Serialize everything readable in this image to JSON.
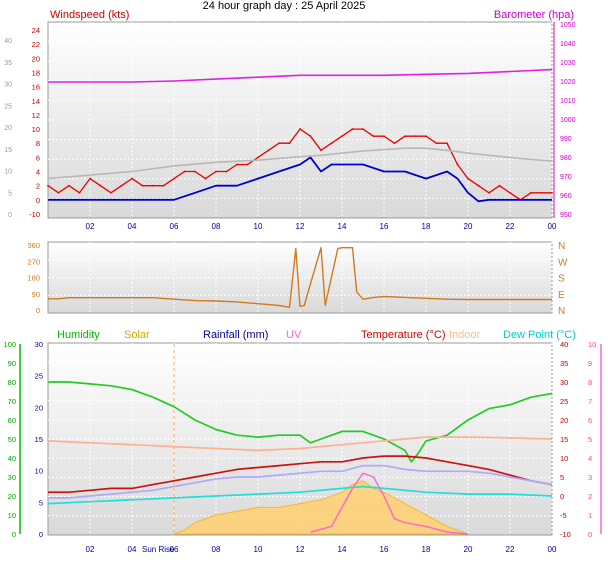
{
  "page_title": "24 hour graph day : 25 April 2025",
  "chart_data": [
    {
      "id": "wind_pressure",
      "type": "line",
      "legend": [
        {
          "label": "Windspeed (kts)",
          "color": "#cc0000"
        },
        {
          "label": "Barometer (hpa)",
          "color": "#cc00cc"
        }
      ],
      "x_tick_labels": [
        "02",
        "04",
        "06",
        "08",
        "10",
        "12",
        "14",
        "16",
        "18",
        "20",
        "22",
        "00"
      ],
      "y_left_kts_ticks": [
        "-10",
        "0",
        "2",
        "4",
        "6",
        "8",
        "10",
        "12",
        "14",
        "16",
        "18",
        "20",
        "22",
        "24"
      ],
      "y_left_mph_ticks": [
        "0",
        "5",
        "10",
        "15",
        "20",
        "25",
        "30",
        "35",
        "40"
      ],
      "y_right_hpa_ticks": [
        "950",
        "960",
        "970",
        "980",
        "990",
        "1000",
        "1010",
        "1020",
        "1030",
        "1040",
        "1050"
      ],
      "series": [
        {
          "key": "barometer",
          "color": "#e020e0",
          "axis": "hpa",
          "x": [
            0,
            2,
            4,
            6,
            8,
            10,
            12,
            14,
            16,
            18,
            20,
            22,
            24
          ],
          "values": [
            1019.5,
            1019.5,
            1019.5,
            1020,
            1021,
            1022,
            1023,
            1023,
            1023,
            1023.5,
            1024,
            1025,
            1026
          ]
        },
        {
          "key": "gust",
          "color": "#ee0000",
          "axis": "kts",
          "x": [
            0,
            0.5,
            1,
            1.5,
            2,
            2.5,
            3,
            3.5,
            4,
            4.5,
            5,
            5.5,
            6,
            6.5,
            7,
            7.5,
            8,
            8.5,
            9,
            9.5,
            10,
            10.5,
            11,
            11.5,
            12,
            12.5,
            13,
            13.5,
            14,
            14.5,
            15,
            15.5,
            16,
            16.5,
            17,
            17.5,
            18,
            18.5,
            19,
            19.5,
            20,
            20.5,
            21,
            21.5,
            22,
            22.5,
            23,
            23.5,
            24
          ],
          "values": [
            2,
            1,
            2,
            1,
            3,
            2,
            1,
            2,
            3,
            2,
            2,
            2,
            3,
            4,
            4,
            3,
            4,
            4,
            5,
            5,
            6,
            7,
            8,
            8,
            10,
            9,
            7,
            8,
            9,
            10,
            10,
            9,
            9,
            8,
            9,
            9,
            9,
            8,
            8,
            5,
            3,
            2,
            1,
            2,
            1,
            0,
            1,
            1,
            1
          ]
        },
        {
          "key": "average",
          "color": "#0000cc",
          "axis": "kts",
          "x": [
            0,
            1,
            2,
            3,
            4,
            5,
            6,
            7,
            8,
            9,
            10,
            11,
            12,
            12.5,
            13,
            13.5,
            14,
            15,
            16,
            17,
            18,
            19,
            19.5,
            20,
            20.5,
            21,
            22,
            23,
            24
          ],
          "values": [
            0,
            0,
            0,
            0,
            0,
            0,
            0,
            1,
            2,
            2,
            3,
            4,
            5,
            6,
            4,
            5,
            5,
            5,
            4,
            4,
            3,
            4,
            3,
            1,
            -1,
            0,
            0,
            0,
            0
          ]
        },
        {
          "key": "direction_scaled",
          "color": "#b8b8b8",
          "axis": "kts",
          "x": [
            0,
            2,
            4,
            6,
            8,
            10,
            12,
            13,
            14,
            15,
            16,
            17,
            18,
            19,
            20,
            21,
            22,
            23,
            24
          ],
          "values": [
            3,
            3.5,
            4,
            4.8,
            5.3,
            5.6,
            6.1,
            6.3,
            6.6,
            6.9,
            7.1,
            7.3,
            7.3,
            7.0,
            6.6,
            6.3,
            6.0,
            5.7,
            5.5
          ]
        }
      ]
    },
    {
      "id": "wind_direction",
      "type": "line",
      "y_left_ticks": [
        "360",
        "270",
        "180",
        "90",
        "0"
      ],
      "y_right_ticks": [
        "N",
        "W",
        "S",
        "E",
        "N"
      ],
      "series": [
        {
          "key": "direction",
          "color": "#d07a20",
          "x": [
            0,
            0.5,
            1,
            3,
            5,
            6,
            7,
            8,
            9,
            10,
            10.5,
            11,
            11.5,
            11.8,
            12,
            12.2,
            13,
            13.2,
            13.8,
            14,
            14.5,
            14.7,
            15,
            15.5,
            16,
            17,
            18,
            19,
            20,
            21,
            22,
            23,
            24
          ],
          "values": [
            62,
            62,
            68,
            68,
            68,
            60,
            52,
            50,
            45,
            35,
            30,
            25,
            15,
            340,
            20,
            25,
            345,
            25,
            340,
            345,
            345,
            100,
            60,
            70,
            75,
            70,
            65,
            60,
            58,
            58,
            58,
            58,
            58
          ]
        }
      ]
    },
    {
      "id": "temperature_humidity",
      "type": "line",
      "legend": [
        {
          "label": "Humidity",
          "color": "#00bb00"
        },
        {
          "label": "Solar",
          "color": "#ccaa00"
        },
        {
          "label": "Rainfall (mm)",
          "color": "#000099"
        },
        {
          "label": "UV",
          "color": "#ff66cc"
        },
        {
          "label": "Temperature (°C)",
          "color": "#cc0000"
        },
        {
          "label": "Indoor",
          "color": "#ffbb88"
        },
        {
          "label": "Dew Point (°C)",
          "color": "#00cccc"
        }
      ],
      "annotations": [
        "Sun Rise"
      ],
      "x_tick_labels": [
        "02",
        "04",
        "06",
        "08",
        "10",
        "12",
        "14",
        "16",
        "18",
        "20",
        "22",
        "00"
      ],
      "y_humidity_ticks": [
        "0",
        "10",
        "20",
        "30",
        "40",
        "50",
        "60",
        "70",
        "80",
        "90",
        "100"
      ],
      "y_rain_ticks": [
        "0",
        "5",
        "10",
        "15",
        "20",
        "25",
        "30"
      ],
      "y_temp_ticks": [
        "-10",
        "-5",
        "0",
        "5",
        "10",
        "15",
        "20",
        "25",
        "30",
        "35",
        "40"
      ],
      "y_uv_ticks": [
        "0",
        "1",
        "2",
        "3",
        "4",
        "5",
        "6",
        "7",
        "8",
        "9",
        "10"
      ],
      "series": [
        {
          "key": "humidity",
          "color": "#22cc22",
          "axis": "temp",
          "x": [
            0,
            1,
            2,
            3,
            4,
            5,
            6,
            7,
            8,
            9,
            10,
            11,
            12,
            12.5,
            13,
            14,
            15,
            16,
            17,
            17.3,
            17.6,
            18,
            19,
            20,
            21,
            22,
            23,
            24
          ],
          "values": [
            30,
            30,
            29.5,
            29,
            28,
            26,
            23.5,
            20,
            17.5,
            16,
            15.5,
            16,
            16,
            14,
            15,
            17,
            17,
            15,
            12,
            9,
            11,
            14.5,
            16,
            20,
            23,
            24,
            26,
            27
          ]
        },
        {
          "key": "indoor",
          "color": "#ffb090",
          "axis": "temp",
          "x": [
            0,
            2,
            4,
            6,
            8,
            10,
            12,
            14,
            16,
            18,
            20,
            22,
            24
          ],
          "values": [
            14.5,
            14,
            13.5,
            13,
            12.5,
            12,
            12.5,
            13.5,
            14.5,
            15.5,
            15.5,
            15.3,
            15
          ]
        },
        {
          "key": "temperature",
          "color": "#cc1111",
          "axis": "temp",
          "x": [
            0,
            1,
            2,
            3,
            4,
            5,
            6,
            7,
            8,
            9,
            10,
            11,
            12,
            13,
            14,
            15,
            16,
            17,
            18,
            19,
            20,
            21,
            22,
            23,
            24
          ],
          "values": [
            1,
            1,
            1.5,
            2,
            2,
            3,
            4,
            5,
            6,
            7,
            7.5,
            8,
            8.5,
            9,
            9,
            10,
            10.5,
            10.5,
            10,
            9,
            8,
            7,
            5.5,
            4,
            3
          ]
        },
        {
          "key": "wind_chill",
          "color": "#aaaaff",
          "axis": "temp",
          "x": [
            0,
            1,
            2,
            3,
            4,
            5,
            6,
            7,
            8,
            9,
            10,
            11,
            12,
            13,
            14,
            15,
            16,
            17,
            18,
            19,
            20,
            21,
            22,
            23,
            24
          ],
          "values": [
            -0.5,
            -0.5,
            0,
            0.5,
            1,
            1.5,
            2.5,
            3.5,
            4.5,
            5,
            5,
            5.5,
            6,
            6.5,
            6.5,
            8,
            8,
            7,
            6.5,
            6.5,
            6.5,
            6,
            5,
            4,
            3
          ]
        },
        {
          "key": "dew_point",
          "color": "#22dddd",
          "axis": "temp",
          "x": [
            0,
            2,
            4,
            6,
            8,
            10,
            12,
            14,
            15,
            16,
            18,
            20,
            22,
            24
          ],
          "values": [
            -2,
            -1.5,
            -1,
            -0.5,
            0,
            0.5,
            1,
            2,
            2.5,
            2,
            1,
            0.5,
            0.5,
            0
          ]
        },
        {
          "key": "uv",
          "color": "#ff66cc",
          "axis": "temp",
          "x": [
            12.5,
            13.5,
            14,
            14.5,
            15,
            15.5,
            16,
            16.5,
            17,
            18,
            19,
            20
          ],
          "values": [
            -9.5,
            -8,
            -3,
            2,
            6,
            5,
            0,
            -6,
            -7,
            -8,
            -9.5,
            -10
          ]
        },
        {
          "key": "solar",
          "color": "#f5b830",
          "axis": "temp",
          "fill": "#ffd070",
          "x": [
            6,
            6.5,
            7,
            8,
            9,
            10,
            11,
            12,
            13,
            14,
            14.5,
            15,
            15.5,
            16,
            17,
            18,
            19,
            20
          ],
          "values": [
            -10,
            -9,
            -7,
            -5,
            -4,
            -3,
            -3,
            -2,
            -1,
            1,
            3,
            4,
            2,
            1,
            -2,
            -5,
            -8,
            -10
          ]
        }
      ]
    }
  ]
}
